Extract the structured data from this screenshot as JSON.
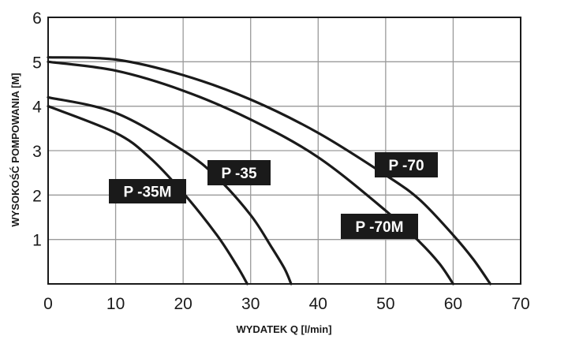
{
  "chart_data": {
    "type": "line",
    "xlabel": "WYDATEK Q [l/min]",
    "ylabel": "WYSOKOŚĆ POMPOWANIA [M]",
    "xlim": [
      0,
      70
    ],
    "ylim": [
      0,
      6
    ],
    "xticks": [
      "0",
      "10",
      "20",
      "30",
      "40",
      "50",
      "60",
      "70"
    ],
    "yticks": [
      "1",
      "2",
      "3",
      "4",
      "5",
      "6"
    ],
    "grid": true,
    "series": [
      {
        "name": "P -70",
        "x": [
          0,
          10,
          20,
          30,
          40,
          50,
          55,
          60,
          63,
          65.5
        ],
        "y": [
          5.1,
          5.05,
          4.7,
          4.15,
          3.4,
          2.45,
          1.9,
          1.1,
          0.55,
          0
        ]
      },
      {
        "name": "P -70M",
        "x": [
          0,
          10,
          20,
          30,
          40,
          50,
          55,
          58,
          60
        ],
        "y": [
          5.0,
          4.8,
          4.35,
          3.7,
          2.85,
          1.65,
          0.95,
          0.45,
          0
        ]
      },
      {
        "name": "P -35",
        "x": [
          0,
          10,
          20,
          25,
          30,
          33,
          35,
          36
        ],
        "y": [
          4.2,
          3.85,
          3.0,
          2.4,
          1.55,
          0.85,
          0.35,
          0
        ]
      },
      {
        "name": "P -35M",
        "x": [
          0,
          10,
          15,
          20,
          25,
          28,
          29.5
        ],
        "y": [
          4.0,
          3.4,
          2.85,
          2.05,
          1.1,
          0.4,
          0
        ]
      }
    ],
    "annotations": [
      {
        "text": "P -70",
        "series": "P -70"
      },
      {
        "text": "P -70M",
        "series": "P -70M"
      },
      {
        "text": "P -35",
        "series": "P -35"
      },
      {
        "text": "P -35M",
        "series": "P -35M"
      }
    ],
    "colors": {
      "line": "#1a1a1a",
      "grid": "#9a9a9a",
      "label_bg": "#1a1a1a"
    }
  }
}
